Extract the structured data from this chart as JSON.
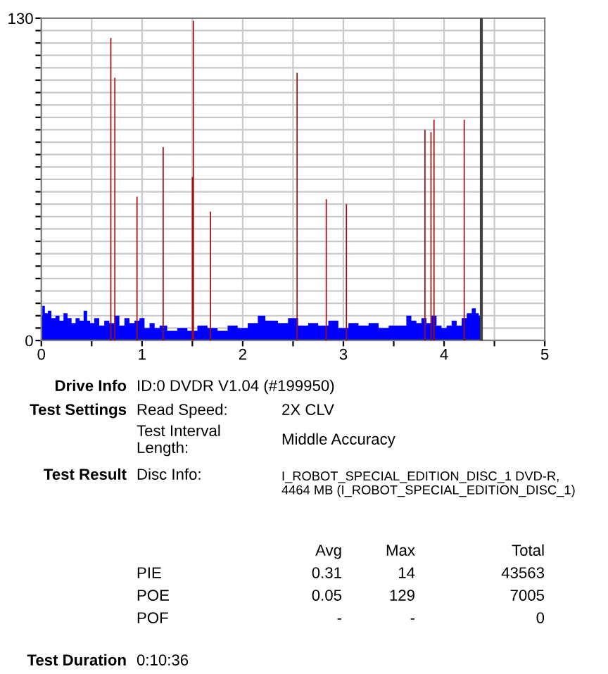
{
  "chart_data": {
    "type": "area",
    "series": [
      {
        "color": "#0000ff",
        "x": [
          0,
          0.02,
          0.05,
          0.08,
          0.12,
          0.16,
          0.2,
          0.24,
          0.28,
          0.32,
          0.36,
          0.4,
          0.44,
          0.47,
          0.5,
          0.55,
          0.6,
          0.65,
          0.7,
          0.75,
          0.8,
          0.85,
          0.9,
          0.95,
          1.0,
          1.05,
          1.1,
          1.15,
          1.2,
          1.3,
          1.4,
          1.5,
          1.6,
          1.7,
          1.8,
          1.9,
          2.0,
          2.1,
          2.2,
          2.25,
          2.3,
          2.4,
          2.5,
          2.6,
          2.7,
          2.8,
          2.9,
          3.0,
          3.1,
          3.2,
          3.3,
          3.4,
          3.5,
          3.6,
          3.65,
          3.7,
          3.75,
          3.8,
          3.85,
          3.9,
          3.95,
          4.0,
          4.05,
          4.1,
          4.15,
          4.2,
          4.25,
          4.3,
          4.33,
          4.36
        ],
        "values": [
          10,
          14,
          11,
          12,
          9,
          10,
          8,
          11,
          9,
          7,
          9,
          8,
          12,
          8,
          7,
          9,
          6,
          8,
          7,
          10,
          6,
          9,
          7,
          8,
          9,
          5,
          7,
          5,
          6,
          4,
          5,
          4,
          6,
          5,
          4,
          6,
          5,
          7,
          10,
          8,
          8,
          7,
          9,
          6,
          7,
          6,
          8,
          5,
          7,
          6,
          7,
          5,
          6,
          6,
          10,
          8,
          7,
          9,
          7,
          10,
          6,
          5,
          6,
          8,
          6,
          9,
          11,
          13,
          11,
          10
        ]
      },
      {
        "type": "bar",
        "color": "#a01010",
        "x": [
          0.69,
          0.73,
          0.95,
          1.21,
          1.5,
          1.51,
          1.68,
          2.54,
          2.83,
          3.03,
          3.81,
          3.87,
          3.9,
          4.2
        ],
        "values": [
          122,
          106,
          58,
          78,
          66,
          129,
          52,
          108,
          57,
          55,
          85,
          84,
          89,
          89
        ]
      }
    ],
    "xlim": [
      0,
      5
    ],
    "ylim": [
      0,
      130
    ],
    "xticks": [
      0,
      {
        "value": 0.5,
        "label": null
      },
      1,
      {
        "value": 1.5,
        "label": null
      },
      2,
      {
        "value": 2.5,
        "label": null
      },
      3,
      {
        "value": 3.5,
        "label": null
      },
      4,
      {
        "value": 4.5,
        "label": null
      },
      5
    ],
    "yticks": [
      0,
      {
        "value": 5,
        "label": null
      },
      {
        "value": 10,
        "label": null
      },
      {
        "value": 15,
        "label": null
      },
      {
        "value": 20,
        "label": null
      },
      {
        "value": 25,
        "label": null
      },
      {
        "value": 30,
        "label": null
      },
      {
        "value": 35,
        "label": null
      },
      {
        "value": 40,
        "label": null
      },
      {
        "value": 45,
        "label": null
      },
      {
        "value": 50,
        "label": null
      },
      {
        "value": 55,
        "label": null
      },
      {
        "value": 60,
        "label": null
      },
      {
        "value": 65,
        "label": null
      },
      {
        "value": 70,
        "label": null
      },
      {
        "value": 75,
        "label": null
      },
      {
        "value": 80,
        "label": null
      },
      {
        "value": 85,
        "label": null
      },
      {
        "value": 90,
        "label": null
      },
      {
        "value": 95,
        "label": null
      },
      {
        "value": 100,
        "label": null
      },
      {
        "value": 105,
        "label": null
      },
      {
        "value": 110,
        "label": null
      },
      {
        "value": 115,
        "label": null
      },
      {
        "value": 120,
        "label": null
      },
      {
        "value": 125,
        "label": null
      },
      130
    ],
    "grid": true,
    "ref_lines": [
      {
        "axis": "x",
        "value": 4.37,
        "color": "#404040"
      }
    ],
    "annotations": [
      "Drive Info",
      "ID:0 DVDR V1.04 (#199950)",
      "Test Settings",
      "Read Speed:",
      "2X CLV",
      "Test Interval\nLength:",
      "Middle Accuracy",
      "Test Result",
      "Disc Info:",
      "I_ROBOT_SPECIAL_EDITION_DISC_1 DVD-R,\n4464 MB (I_ROBOT_SPECIAL_EDITION_DISC_1)",
      "Avg",
      "Max",
      "Total",
      "PIE",
      "0.31",
      "14",
      "43563",
      "POE",
      "0.05",
      "129",
      "7005",
      "POF",
      "-",
      "-",
      "0",
      "Test Duration",
      "0:10:36"
    ]
  }
}
